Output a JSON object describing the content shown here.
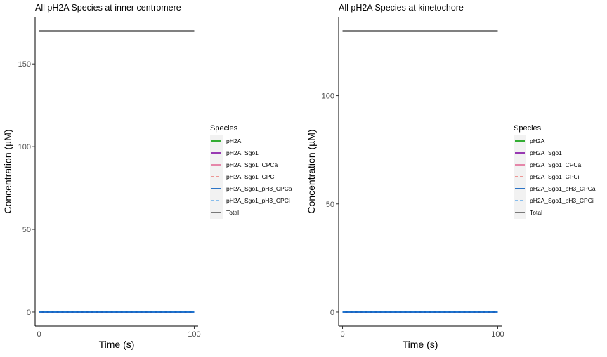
{
  "chart_data": [
    {
      "type": "line",
      "title": "All pH2A Species at inner centromere",
      "xlabel": "Time (s)",
      "ylabel": "Concentration (µM)",
      "xlim": [
        -2.5,
        102.5
      ],
      "ylim": [
        -8.5,
        178.5
      ],
      "x_ticks": [
        0,
        100
      ],
      "y_ticks": [
        0,
        50,
        100,
        150
      ],
      "grid": false,
      "legend": {
        "title": "Species",
        "position": "right",
        "entries": [
          {
            "label": "pH2A",
            "color": "#1fa51f",
            "dash": "solid",
            "width": 1.8
          },
          {
            "label": "pH2A_Sgo1",
            "color": "#8e24aa",
            "dash": "solid",
            "width": 1.8
          },
          {
            "label": "pH2A_Sgo1_CPCa",
            "color": "#d81b60",
            "dash": "solid",
            "width": 1.0
          },
          {
            "label": "pH2A_Sgo1_CPCi",
            "color": "#e53935",
            "dash": "dashed",
            "width": 1.0
          },
          {
            "label": "pH2A_Sgo1_pH3_CPCa",
            "color": "#1565c0",
            "dash": "solid",
            "width": 1.8
          },
          {
            "label": "pH2A_Sgo1_pH3_CPCi",
            "color": "#1e88e5",
            "dash": "dashed",
            "width": 1.0
          },
          {
            "label": "Total",
            "color": "#000000",
            "dash": "solid",
            "width": 1.0
          }
        ]
      },
      "series": [
        {
          "name": "pH2A",
          "x": [
            0,
            100
          ],
          "y": [
            0,
            0
          ]
        },
        {
          "name": "pH2A_Sgo1",
          "x": [
            0,
            100
          ],
          "y": [
            0,
            0
          ]
        },
        {
          "name": "pH2A_Sgo1_CPCa",
          "x": [
            0,
            100
          ],
          "y": [
            0,
            0
          ]
        },
        {
          "name": "pH2A_Sgo1_CPCi",
          "x": [
            0,
            100
          ],
          "y": [
            0,
            0
          ]
        },
        {
          "name": "pH2A_Sgo1_pH3_CPCa",
          "x": [
            0,
            100
          ],
          "y": [
            0,
            0
          ]
        },
        {
          "name": "pH2A_Sgo1_pH3_CPCi",
          "x": [
            0,
            100
          ],
          "y": [
            0,
            0
          ]
        },
        {
          "name": "Total",
          "x": [
            0,
            100
          ],
          "y": [
            170,
            170
          ]
        }
      ]
    },
    {
      "type": "line",
      "title": "All pH2A Species at kinetochore",
      "xlabel": "Time (s)",
      "ylabel": "Concentration (µM)",
      "xlim": [
        -2.5,
        102.5
      ],
      "ylim": [
        -6.5,
        136.5
      ],
      "x_ticks": [
        0,
        100
      ],
      "y_ticks": [
        0,
        50,
        100
      ],
      "grid": false,
      "legend": {
        "title": "Species",
        "position": "right",
        "entries": [
          {
            "label": "pH2A",
            "color": "#1fa51f",
            "dash": "solid",
            "width": 1.8
          },
          {
            "label": "pH2A_Sgo1",
            "color": "#8e24aa",
            "dash": "solid",
            "width": 1.8
          },
          {
            "label": "pH2A_Sgo1_CPCa",
            "color": "#d81b60",
            "dash": "solid",
            "width": 1.0
          },
          {
            "label": "pH2A_Sgo1_CPCi",
            "color": "#e53935",
            "dash": "dashed",
            "width": 1.0
          },
          {
            "label": "pH2A_Sgo1_pH3_CPCa",
            "color": "#1565c0",
            "dash": "solid",
            "width": 1.8
          },
          {
            "label": "pH2A_Sgo1_pH3_CPCi",
            "color": "#1e88e5",
            "dash": "dashed",
            "width": 1.0
          },
          {
            "label": "Total",
            "color": "#000000",
            "dash": "solid",
            "width": 1.0
          }
        ]
      },
      "series": [
        {
          "name": "pH2A",
          "x": [
            0,
            100
          ],
          "y": [
            0,
            0
          ]
        },
        {
          "name": "pH2A_Sgo1",
          "x": [
            0,
            100
          ],
          "y": [
            0,
            0
          ]
        },
        {
          "name": "pH2A_Sgo1_CPCa",
          "x": [
            0,
            100
          ],
          "y": [
            0,
            0
          ]
        },
        {
          "name": "pH2A_Sgo1_CPCi",
          "x": [
            0,
            100
          ],
          "y": [
            0,
            0
          ]
        },
        {
          "name": "pH2A_Sgo1_pH3_CPCa",
          "x": [
            0,
            100
          ],
          "y": [
            0,
            0
          ]
        },
        {
          "name": "pH2A_Sgo1_pH3_CPCi",
          "x": [
            0,
            100
          ],
          "y": [
            0,
            0
          ]
        },
        {
          "name": "Total",
          "x": [
            0,
            100
          ],
          "y": [
            130,
            130
          ]
        }
      ]
    }
  ]
}
